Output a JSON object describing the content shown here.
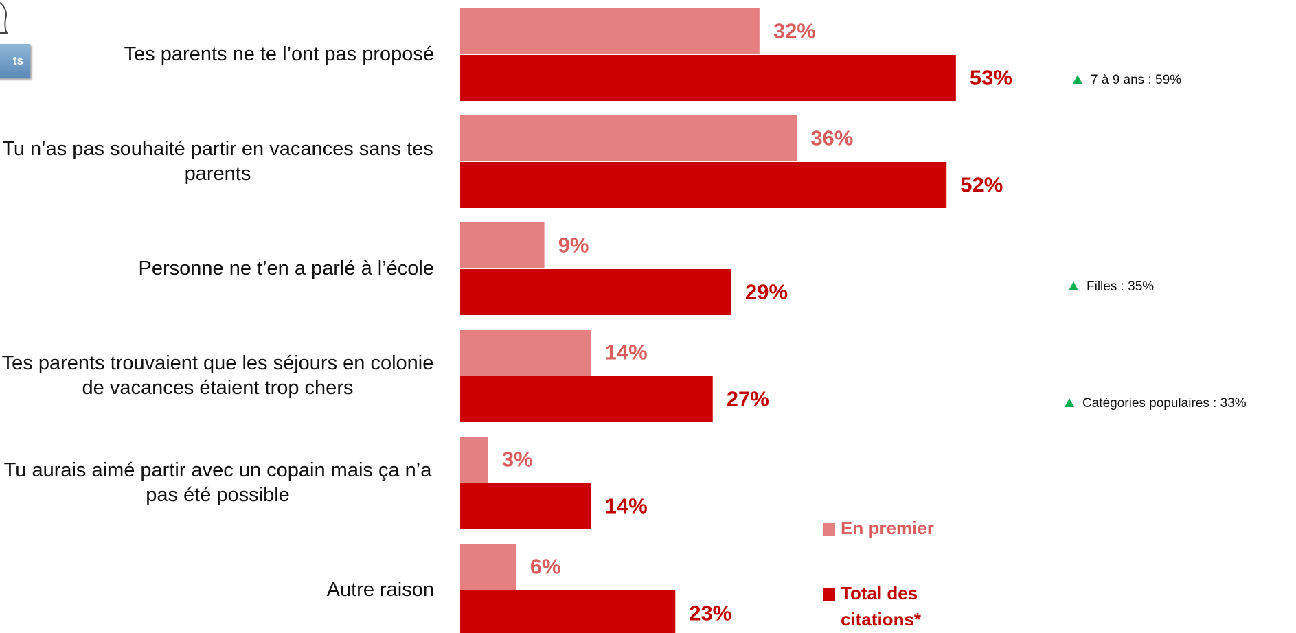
{
  "button_label": "ts",
  "chart_data": {
    "type": "bar",
    "categories": [
      "Tes parents ne te l’ont pas proposé",
      "Tu n’as pas souhaité partir en vacances sans tes parents",
      "Personne ne t’en a parlé à l’école",
      "Tes parents trouvaient que les séjours en colonie de vacances étaient trop chers",
      "Tu aurais aimé partir avec un copain mais ça n’a pas été possible",
      "Autre raison"
    ],
    "series": [
      {
        "name": "En premier",
        "color": "#e48080",
        "label_color": "#d95f5f",
        "values": [
          32,
          36,
          9,
          14,
          3,
          6
        ],
        "value_labels": [
          "32%",
          "36%",
          "9%",
          "14%",
          "3%",
          "6%"
        ]
      },
      {
        "name": "Total des citations*",
        "color": "#cc0000",
        "label_color": "#c00000",
        "values": [
          53,
          52,
          29,
          27,
          14,
          23
        ],
        "value_labels": [
          "53%",
          "52%",
          "29%",
          "27%",
          "14%",
          "23%"
        ]
      }
    ],
    "annotations": [
      "7 à 9 ans : 59%",
      "Filles : 35%",
      "Catégories populaires : 33%"
    ],
    "annotation_color": "#00b050"
  }
}
